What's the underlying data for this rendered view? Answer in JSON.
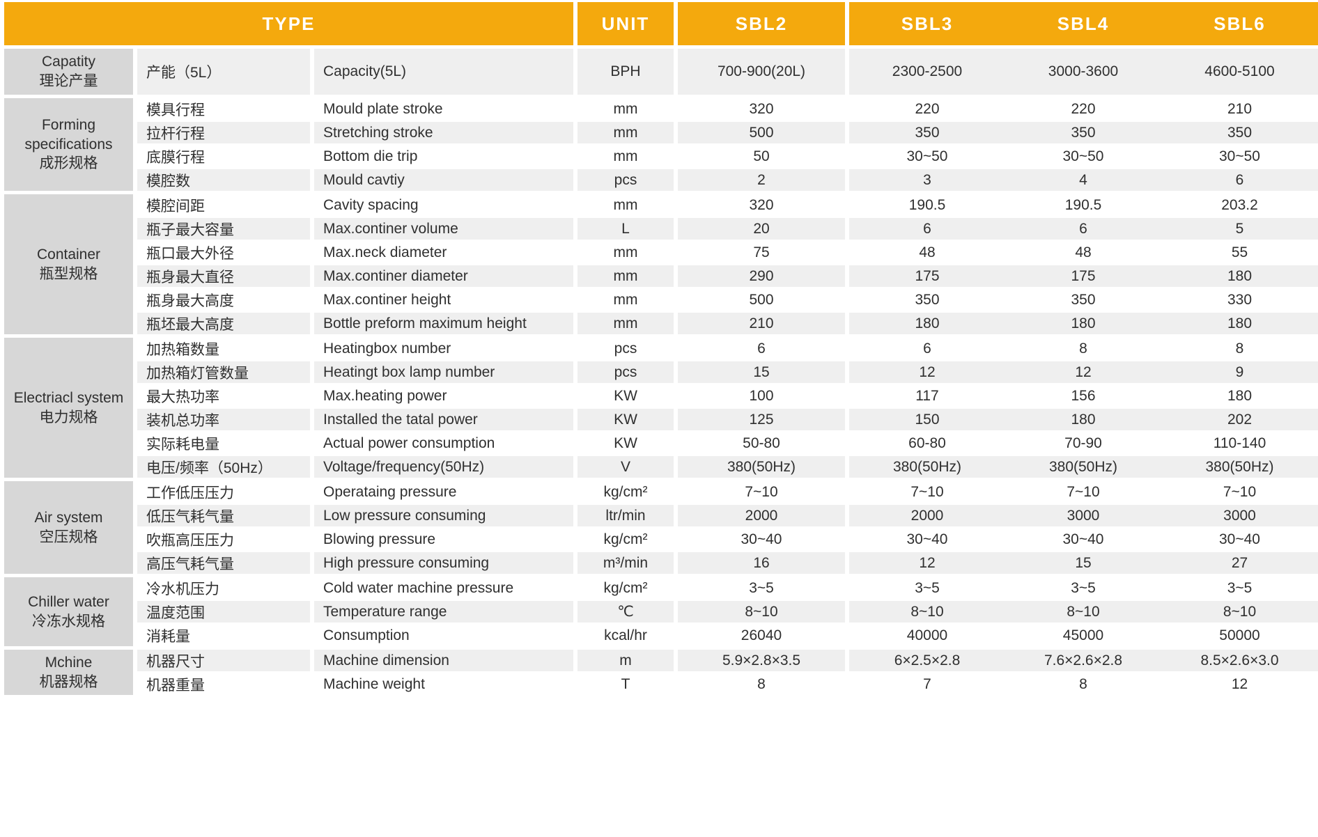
{
  "header": {
    "type_label": "TYPE",
    "unit_label": "UNIT",
    "models": [
      "SBL2",
      "SBL3",
      "SBL4",
      "SBL6"
    ]
  },
  "colors": {
    "header_bg": "#F4A90D",
    "header_text": "#FFFFFF",
    "group_bg": "#D7D7D7",
    "row_alt_bg": "#EFEFEF",
    "row_bg": "#FFFFFF",
    "text": "#2F2F2F"
  },
  "groups": [
    {
      "en": "Capatity",
      "cn": "理论产量",
      "rows": [
        {
          "cn": "产能（5L）",
          "en": "Capacity(5L)",
          "unit": "BPH",
          "values": [
            "700-900(20L)",
            "2300-2500",
            "3000-3600",
            "4600-5100"
          ]
        }
      ]
    },
    {
      "en": "Forming specifications",
      "cn": "成形规格",
      "rows": [
        {
          "cn": "模具行程",
          "en": "Mould plate stroke",
          "unit": "mm",
          "values": [
            "320",
            "220",
            "220",
            "210"
          ]
        },
        {
          "cn": "拉杆行程",
          "en": "Stretching stroke",
          "unit": "mm",
          "values": [
            "500",
            "350",
            "350",
            "350"
          ]
        },
        {
          "cn": "底膜行程",
          "en": "Bottom die trip",
          "unit": "mm",
          "values": [
            "50",
            "30~50",
            "30~50",
            "30~50"
          ]
        },
        {
          "cn": "模腔数",
          "en": "Mould cavtiy",
          "unit": "pcs",
          "values": [
            "2",
            "3",
            "4",
            "6"
          ]
        }
      ]
    },
    {
      "en": "Container",
      "cn": "瓶型规格",
      "rows": [
        {
          "cn": "模腔间距",
          "en": "Cavity spacing",
          "unit": "mm",
          "values": [
            "320",
            "190.5",
            "190.5",
            "203.2"
          ]
        },
        {
          "cn": "瓶子最大容量",
          "en": "Max.continer volume",
          "unit": "L",
          "values": [
            "20",
            "6",
            "6",
            "5"
          ]
        },
        {
          "cn": "瓶口最大外径",
          "en": "Max.neck diameter",
          "unit": "mm",
          "values": [
            "75",
            "48",
            "48",
            "55"
          ]
        },
        {
          "cn": "瓶身最大直径",
          "en": "Max.continer diameter",
          "unit": "mm",
          "values": [
            "290",
            "175",
            "175",
            "180"
          ]
        },
        {
          "cn": "瓶身最大高度",
          "en": "Max.continer height",
          "unit": "mm",
          "values": [
            "500",
            "350",
            "350",
            "330"
          ]
        },
        {
          "cn": "瓶坯最大高度",
          "en": "Bottle preform maximum height",
          "unit": "mm",
          "values": [
            "210",
            "180",
            "180",
            "180"
          ]
        }
      ]
    },
    {
      "en": "Electriacl system",
      "cn": "电力规格",
      "rows": [
        {
          "cn": "加热箱数量",
          "en": "Heatingbox number",
          "unit": "pcs",
          "values": [
            "6",
            "6",
            "8",
            "8"
          ]
        },
        {
          "cn": "加热箱灯管数量",
          "en": "Heatingt box lamp number",
          "unit": "pcs",
          "values": [
            "15",
            "12",
            "12",
            "9"
          ]
        },
        {
          "cn": "最大热功率",
          "en": "Max.heating power",
          "unit": "KW",
          "values": [
            "100",
            "117",
            "156",
            "180"
          ]
        },
        {
          "cn": "装机总功率",
          "en": "Installed the tatal power",
          "unit": "KW",
          "values": [
            "125",
            "150",
            "180",
            "202"
          ]
        },
        {
          "cn": "实际耗电量",
          "en": "Actual power consumption",
          "unit": "KW",
          "values": [
            "50-80",
            "60-80",
            "70-90",
            "110-140"
          ]
        },
        {
          "cn": "电压/频率（50Hz）",
          "en": "Voltage/frequency(50Hz)",
          "unit": "V",
          "values": [
            "380(50Hz)",
            "380(50Hz)",
            "380(50Hz)",
            "380(50Hz)"
          ]
        }
      ]
    },
    {
      "en": "Air system",
      "cn": "空压规格",
      "rows": [
        {
          "cn": "工作低压压力",
          "en": "Operataing pressure",
          "unit": "kg/cm²",
          "values": [
            "7~10",
            "7~10",
            "7~10",
            "7~10"
          ]
        },
        {
          "cn": "低压气耗气量",
          "en": "Low pressure consuming",
          "unit": "ltr/min",
          "values": [
            "2000",
            "2000",
            "3000",
            "3000"
          ]
        },
        {
          "cn": "吹瓶高压压力",
          "en": "Blowing pressure",
          "unit": "kg/cm²",
          "values": [
            "30~40",
            "30~40",
            "30~40",
            "30~40"
          ]
        },
        {
          "cn": "高压气耗气量",
          "en": "High pressure consuming",
          "unit": "m³/min",
          "values": [
            "16",
            "12",
            "15",
            "27"
          ]
        }
      ]
    },
    {
      "en": "Chiller water",
      "cn": "冷冻水规格",
      "rows": [
        {
          "cn": "冷水机压力",
          "en": "Cold water machine pressure",
          "unit": "kg/cm²",
          "values": [
            "3~5",
            "3~5",
            "3~5",
            "3~5"
          ]
        },
        {
          "cn": "温度范围",
          "en": "Temperature range",
          "unit": "℃",
          "values": [
            "8~10",
            "8~10",
            "8~10",
            "8~10"
          ]
        },
        {
          "cn": "消耗量",
          "en": "Consumption",
          "unit": "kcal/hr",
          "values": [
            "26040",
            "40000",
            "45000",
            "50000"
          ]
        }
      ]
    },
    {
      "en": "Mchine",
      "cn": "机器规格",
      "rows": [
        {
          "cn": "机器尺寸",
          "en": "Machine dimension",
          "unit": "m",
          "values": [
            "5.9×2.8×3.5",
            "6×2.5×2.8",
            "7.6×2.6×2.8",
            "8.5×2.6×3.0"
          ]
        },
        {
          "cn": "机器重量",
          "en": "Machine weight",
          "unit": "T",
          "values": [
            "8",
            "7",
            "8",
            "12"
          ]
        }
      ]
    }
  ]
}
